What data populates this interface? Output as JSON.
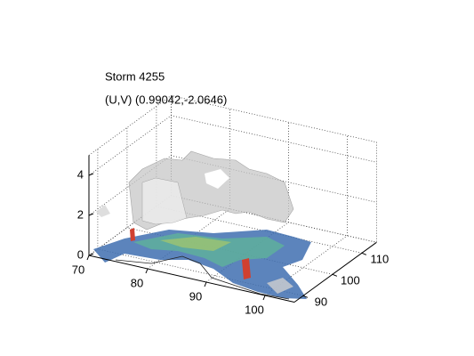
{
  "chart_data": {
    "type": "surface3d",
    "title": "Storm 4255",
    "subtitle": "(U,V) (0.99042,-2.0646)",
    "xlim": [
      70,
      105
    ],
    "xticks": [
      70,
      80,
      90,
      100
    ],
    "ylim": [
      87,
      115
    ],
    "yticks": [
      90,
      100,
      110
    ],
    "zlim": [
      0,
      5
    ],
    "zticks": [
      0,
      2,
      4
    ],
    "grid": true
  }
}
